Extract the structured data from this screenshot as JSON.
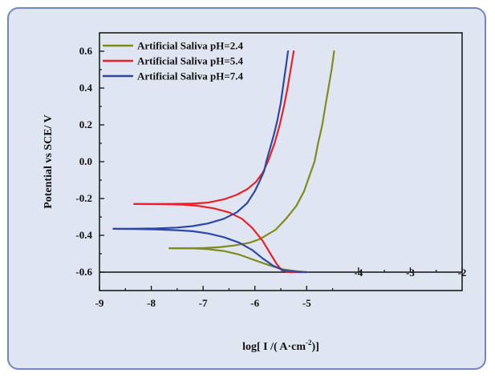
{
  "chart_data": {
    "type": "line",
    "title": "",
    "xlabel_main": "log[ I /( A·cm",
    "xlabel_sup": "-2",
    "xlabel_end": ")]",
    "ylabel": "Potential vs SCE/ V",
    "xlim": [
      -9,
      -2
    ],
    "ylim": [
      -0.7,
      0.7
    ],
    "x_ticks": [
      {
        "value": -9,
        "label": "-9"
      },
      {
        "value": -8,
        "label": "-8"
      },
      {
        "value": -7,
        "label": "-7"
      },
      {
        "value": -6,
        "label": "-6"
      },
      {
        "value": -5,
        "label": "-5"
      },
      {
        "value": -4,
        "label": "-4"
      },
      {
        "value": -3,
        "label": "-3"
      },
      {
        "value": -2,
        "label": "-2"
      }
    ],
    "y_ticks": [
      {
        "value": 0.6,
        "label": "0.6"
      },
      {
        "value": 0.4,
        "label": "0.4"
      },
      {
        "value": 0.2,
        "label": "0.2"
      },
      {
        "value": 0.0,
        "label": "0.0"
      },
      {
        "value": -0.2,
        "label": "-0.2"
      },
      {
        "value": -0.4,
        "label": "-0.4"
      },
      {
        "value": -0.6,
        "label": "-0.6"
      }
    ],
    "legend_position": "top-left",
    "series": [
      {
        "name": "Artificial Saliva pH=2.4",
        "color": "#7f8a1f",
        "branches": [
          [
            [
              -7.65,
              -0.47
            ],
            [
              -7.3,
              -0.47
            ],
            [
              -7.0,
              -0.469
            ],
            [
              -6.7,
              -0.465
            ],
            [
              -6.4,
              -0.455
            ],
            [
              -6.1,
              -0.44
            ],
            [
              -5.9,
              -0.42
            ],
            [
              -5.6,
              -0.37
            ],
            [
              -5.4,
              -0.31
            ],
            [
              -5.2,
              -0.24
            ],
            [
              -5.05,
              -0.16
            ],
            [
              -4.95,
              -0.08
            ],
            [
              -4.85,
              0.0
            ],
            [
              -4.78,
              0.1
            ],
            [
              -4.7,
              0.2
            ],
            [
              -4.64,
              0.3
            ],
            [
              -4.58,
              0.4
            ],
            [
              -4.52,
              0.5
            ],
            [
              -4.47,
              0.6
            ]
          ],
          [
            [
              -7.65,
              -0.47
            ],
            [
              -7.2,
              -0.471
            ],
            [
              -6.9,
              -0.475
            ],
            [
              -6.6,
              -0.485
            ],
            [
              -6.3,
              -0.505
            ],
            [
              -6.0,
              -0.535
            ],
            [
              -5.7,
              -0.565
            ],
            [
              -5.45,
              -0.585
            ],
            [
              -5.2,
              -0.595
            ],
            [
              -5.0,
              -0.6
            ]
          ]
        ]
      },
      {
        "name": "Artificial Saliva pH=5.4",
        "color": "#e8212a",
        "branches": [
          [
            [
              -8.33,
              -0.23
            ],
            [
              -8.0,
              -0.23
            ],
            [
              -7.6,
              -0.229
            ],
            [
              -7.2,
              -0.228
            ],
            [
              -6.9,
              -0.222
            ],
            [
              -6.6,
              -0.205
            ],
            [
              -6.35,
              -0.18
            ],
            [
              -6.15,
              -0.15
            ],
            [
              -5.98,
              -0.11
            ],
            [
              -5.85,
              -0.06
            ],
            [
              -5.75,
              0.0
            ],
            [
              -5.62,
              0.1
            ],
            [
              -5.52,
              0.2
            ],
            [
              -5.44,
              0.3
            ],
            [
              -5.37,
              0.4
            ],
            [
              -5.31,
              0.5
            ],
            [
              -5.25,
              0.6
            ]
          ],
          [
            [
              -8.33,
              -0.23
            ],
            [
              -7.8,
              -0.231
            ],
            [
              -7.4,
              -0.233
            ],
            [
              -7.1,
              -0.24
            ],
            [
              -6.8,
              -0.253
            ],
            [
              -6.5,
              -0.275
            ],
            [
              -6.25,
              -0.31
            ],
            [
              -6.05,
              -0.36
            ],
            [
              -5.85,
              -0.43
            ],
            [
              -5.7,
              -0.5
            ],
            [
              -5.58,
              -0.555
            ],
            [
              -5.48,
              -0.59
            ],
            [
              -5.35,
              -0.6
            ],
            [
              -5.1,
              -0.6
            ],
            [
              -5.0,
              -0.6
            ]
          ]
        ]
      },
      {
        "name": "Artificial Saliva pH=7.4",
        "color": "#2d47a8",
        "branches": [
          [
            [
              -8.73,
              -0.365
            ],
            [
              -8.3,
              -0.364
            ],
            [
              -7.9,
              -0.362
            ],
            [
              -7.5,
              -0.358
            ],
            [
              -7.2,
              -0.35
            ],
            [
              -6.9,
              -0.335
            ],
            [
              -6.6,
              -0.31
            ],
            [
              -6.35,
              -0.275
            ],
            [
              -6.15,
              -0.225
            ],
            [
              -6.0,
              -0.16
            ],
            [
              -5.9,
              -0.1
            ],
            [
              -5.82,
              -0.05
            ],
            [
              -5.78,
              0.0
            ],
            [
              -5.7,
              0.08
            ],
            [
              -5.63,
              0.15
            ],
            [
              -5.57,
              0.22
            ],
            [
              -5.5,
              0.32
            ],
            [
              -5.45,
              0.42
            ],
            [
              -5.4,
              0.52
            ],
            [
              -5.36,
              0.6
            ]
          ],
          [
            [
              -8.73,
              -0.365
            ],
            [
              -8.3,
              -0.366
            ],
            [
              -7.9,
              -0.368
            ],
            [
              -7.5,
              -0.372
            ],
            [
              -7.2,
              -0.378
            ],
            [
              -6.9,
              -0.39
            ],
            [
              -6.6,
              -0.41
            ],
            [
              -6.3,
              -0.44
            ],
            [
              -6.05,
              -0.48
            ],
            [
              -5.85,
              -0.525
            ],
            [
              -5.65,
              -0.565
            ],
            [
              -5.45,
              -0.59
            ],
            [
              -5.2,
              -0.598
            ],
            [
              -5.0,
              -0.6
            ]
          ]
        ]
      }
    ]
  }
}
